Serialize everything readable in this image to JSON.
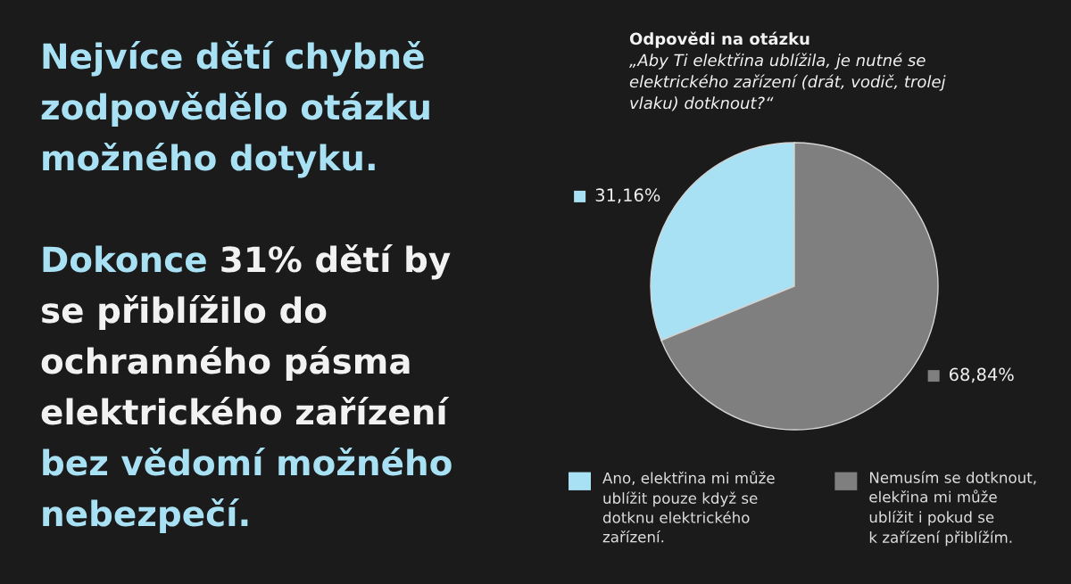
{
  "chart_data": {
    "type": "pie",
    "title": "Odpovědi na otázku",
    "subtitle": "„Aby Ti elektřina ublížila, je nutné se elektrického zařízení (drát, vodič, trolej vlaku) dotknout?“",
    "annotations": [
      "Nejvíce dětí chybně zodpovědělo otázku možného dotyku.",
      "Dokonce",
      "31% dětí by",
      "se přiblížilo do ochranného pásma elektrického zařízení",
      "bez vědomí možného nebezpečí."
    ],
    "categories": [
      "Ano, elektřina mi může ublížit pouze když se dotknu elektrického zařízení.",
      "Nemusím se dotknout, elekřina mi může ublížit i pokud se k zařízení přiblížím."
    ],
    "values": [
      31.16,
      68.84
    ],
    "colors": [
      "#a9e1f4",
      "#7f7f7f"
    ],
    "value_labels": [
      "31,16%",
      "68,84%"
    ],
    "legend": "bottom"
  }
}
